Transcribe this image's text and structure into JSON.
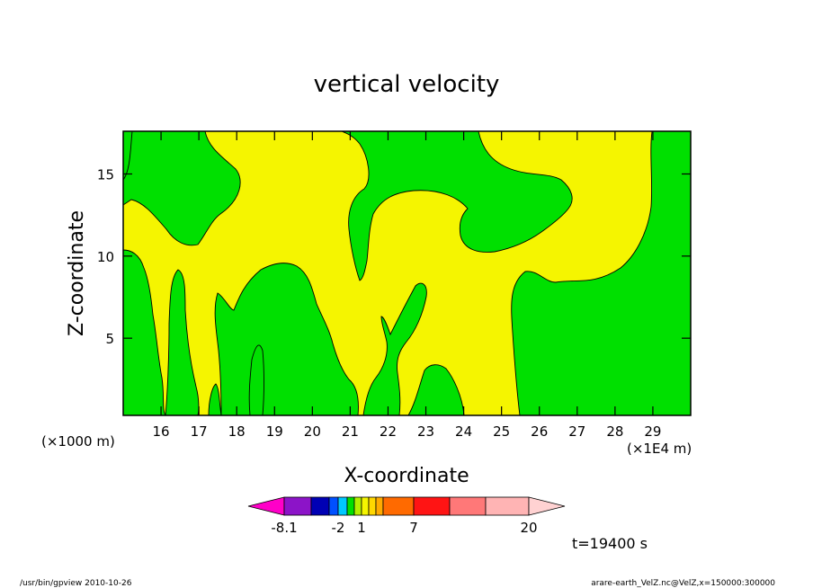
{
  "chart_data": {
    "type": "heatmap",
    "title": "vertical velocity",
    "xlabel": "X-coordinate",
    "ylabel": "Z-coordinate",
    "x_unit_label": "(×1E4 m)",
    "y_unit_label": "(×1000 m)",
    "x_ticks": [
      16,
      17,
      18,
      19,
      20,
      21,
      22,
      23,
      24,
      25,
      26,
      27,
      28,
      29
    ],
    "y_ticks": [
      5,
      10,
      15
    ],
    "xlim": [
      15,
      30
    ],
    "ylim": [
      0.3,
      17.6
    ],
    "fields": [
      {
        "name": "green",
        "color": "#00e000"
      },
      {
        "name": "yellow",
        "color": "#f5f500"
      }
    ],
    "colorbar": {
      "colors": [
        "#ff00c8",
        "#8c14c8",
        "#0000b4",
        "#0050ff",
        "#00c8ff",
        "#00e000",
        "#b4f000",
        "#f5f500",
        "#ffd700",
        "#ffaa00",
        "#ff6a00",
        "#ff1414",
        "#ff7878",
        "#ffb4b4",
        "#ffd2d2"
      ],
      "labels": [
        "-8.1",
        "-2",
        "1",
        "7",
        "20"
      ]
    },
    "time_label": "t=19400 s"
  },
  "footer": {
    "left": "/usr/bin/gpview  2010-10-26",
    "right": "arare-earth_VelZ.nc@VelZ,x=150000:300000"
  },
  "icons": {
    "colorbar_left": "triangle-left",
    "colorbar_right": "triangle-right"
  }
}
